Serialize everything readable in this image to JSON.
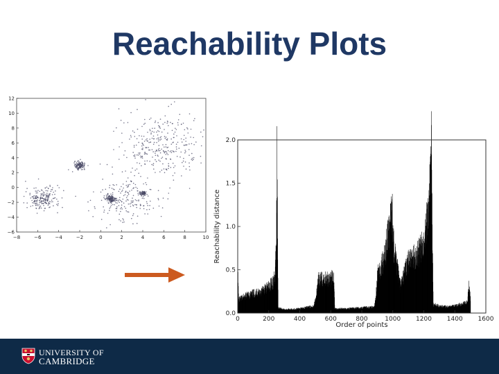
{
  "slide": {
    "title": "Reachability Plots",
    "arrow_color": "#cc5a1f"
  },
  "footer": {
    "line1": "UNIVERSITY OF",
    "line2": "CAMBRIDGE",
    "bg_color": "#0e2a47"
  },
  "chart_data": [
    {
      "type": "scatter",
      "xlim": [
        -8,
        10
      ],
      "ylim": [
        -6,
        12
      ],
      "x_ticks": [
        "−8",
        "−6",
        "−4",
        "−2",
        "0",
        "2",
        "4",
        "6",
        "8",
        "10"
      ],
      "y_ticks": [
        "−6",
        "−4",
        "−2",
        "0",
        "2",
        "4",
        "6",
        "8",
        "10",
        "12"
      ],
      "point_color": "#4a4a66",
      "clusters": [
        {
          "cx": -5.5,
          "cy": -1.5,
          "spread": 0.8,
          "n": 200
        },
        {
          "cx": -2.0,
          "cy": 3.0,
          "spread": 0.25,
          "n": 130
        },
        {
          "cx": 1.0,
          "cy": -1.6,
          "spread": 0.25,
          "n": 140
        },
        {
          "cx": 4.0,
          "cy": -0.8,
          "spread": 0.18,
          "n": 70
        },
        {
          "cx": 2.5,
          "cy": -1.5,
          "spread": 1.5,
          "n": 180
        },
        {
          "cx": 5.5,
          "cy": 5.5,
          "spread": 1.9,
          "n": 320
        }
      ]
    },
    {
      "type": "area",
      "xlabel": "Order of points",
      "ylabel": "Reachability distance",
      "xlim": [
        0,
        1600
      ],
      "ylim": [
        0,
        2.0
      ],
      "x_ticks": [
        "0",
        "200",
        "400",
        "600",
        "800",
        "1000",
        "1200",
        "1400",
        "1600"
      ],
      "y_ticks": [
        "0.0",
        "0.5",
        "1.0",
        "1.5",
        "2.0"
      ],
      "fill_color": "#000000",
      "profile": [
        [
          0,
          0.45
        ],
        [
          5,
          0.15
        ],
        [
          60,
          0.2
        ],
        [
          150,
          0.25
        ],
        [
          200,
          0.3
        ],
        [
          240,
          0.4
        ],
        [
          248,
          0.9
        ],
        [
          252,
          1.9
        ],
        [
          256,
          0.9
        ],
        [
          260,
          0.06
        ],
        [
          300,
          0.04
        ],
        [
          400,
          0.05
        ],
        [
          490,
          0.08
        ],
        [
          505,
          0.2
        ],
        [
          520,
          0.38
        ],
        [
          600,
          0.4
        ],
        [
          620,
          0.4
        ],
        [
          625,
          0.05
        ],
        [
          700,
          0.05
        ],
        [
          880,
          0.07
        ],
        [
          890,
          0.2
        ],
        [
          900,
          0.45
        ],
        [
          940,
          0.6
        ],
        [
          960,
          0.8
        ],
        [
          980,
          1.0
        ],
        [
          995,
          1.22
        ],
        [
          1000,
          0.9
        ],
        [
          1010,
          0.7
        ],
        [
          1050,
          0.3
        ],
        [
          1080,
          0.5
        ],
        [
          1100,
          0.6
        ],
        [
          1150,
          0.65
        ],
        [
          1200,
          0.8
        ],
        [
          1230,
          1.2
        ],
        [
          1248,
          1.94
        ],
        [
          1252,
          1.2
        ],
        [
          1260,
          0.1
        ],
        [
          1300,
          0.08
        ],
        [
          1350,
          0.07
        ],
        [
          1400,
          0.08
        ],
        [
          1480,
          0.12
        ],
        [
          1490,
          0.33
        ],
        [
          1500,
          0.15
        ]
      ]
    }
  ]
}
